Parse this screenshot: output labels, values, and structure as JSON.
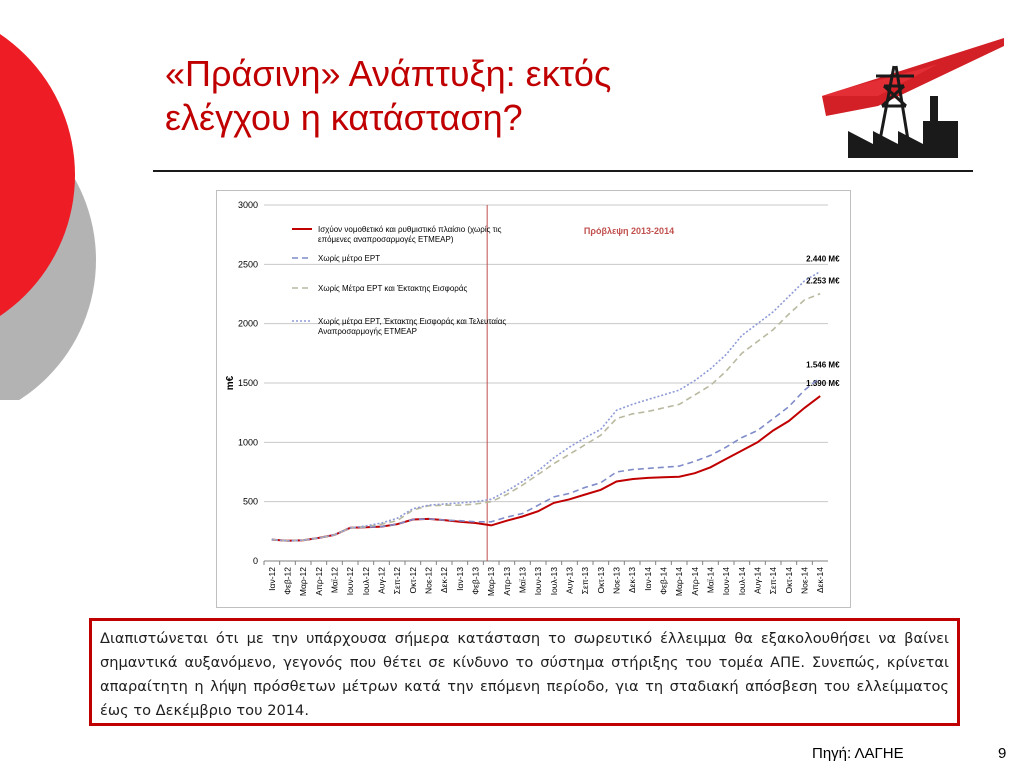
{
  "slide": {
    "title_line1": "«Πράσινη» Ανάπτυξη: εκτός",
    "title_line2": "ελέγχου η κατάσταση?",
    "note_text": "Διαπιστώνεται ότι με την υπάρχουσα σήμερα κατάσταση το σωρευτικό έλλειμμα θα εξακολουθήσει να βαίνει σημαντικά αυξανόμενο, γεγονός που θέτει σε κίνδυνο το σύστημα στήριξης του τομέα ΑΠΕ. Συνεπώς, κρίνεται απαραίτητη η λήψη πρόσθετων μέτρων κατά την επόμενη περίοδο, για τη σταδιακή απόσβεση του ελλείμματος έως το Δεκέμβριο του 2014.",
    "source": "Πηγή: ΛΑΓΗΕ",
    "page_number": "9",
    "colors": {
      "accent": "#c00000",
      "circle_red": "#ee1c25",
      "circle_grey": "#b3b3b3"
    },
    "logo_icon": "pylon-factory-icon"
  },
  "chart_data": {
    "type": "line",
    "ylabel": "m€",
    "ylim": [
      0,
      3000
    ],
    "yticks": [
      "0",
      "500",
      "1000",
      "1500",
      "2000",
      "2500",
      "3000"
    ],
    "grid": true,
    "legend_position": "top-left",
    "categories": [
      "Ιαν-12",
      "Φεβ-12",
      "Μαρ-12",
      "Απρ-12",
      "Μαϊ-12",
      "Ιουν-12",
      "Ιουλ-12",
      "Αυγ-12",
      "Σεπ-12",
      "Οκτ-12",
      "Νοε-12",
      "Δεκ-12",
      "Ιαν-13",
      "Φεβ-13",
      "Μαρ-13",
      "Απρ-13",
      "Μαϊ-13",
      "Ιουν-13",
      "Ιουλ-13",
      "Αυγ-13",
      "Σεπ-13",
      "Οκτ-13",
      "Νοε-13",
      "Δεκ-13",
      "Ιαν-14",
      "Φεβ-14",
      "Μαρ-14",
      "Απρ-14",
      "Μαϊ-14",
      "Ιουν-14",
      "Ιουλ-14",
      "Αυγ-14",
      "Σεπ-14",
      "Οκτ-14",
      "Νοε-14",
      "Δεκ-14"
    ],
    "forecast_label": "Πρόβλεψη 2013-2014",
    "forecast_start": "Μαρ-13",
    "series": [
      {
        "name": "Ισχύον νομοθετικό και ρυθμιστικό πλαίσιο (χωρίς τις επόμενες αναπροσαρμογές ΕΤΜΕΑΡ)",
        "color": "#c00000",
        "dash": "solid",
        "end_label": "1.390 M€",
        "values": [
          180,
          170,
          175,
          195,
          220,
          280,
          285,
          290,
          310,
          350,
          355,
          345,
          330,
          320,
          300,
          340,
          375,
          420,
          490,
          520,
          560,
          600,
          670,
          690,
          700,
          705,
          710,
          740,
          790,
          860,
          930,
          1000,
          1100,
          1180,
          1290,
          1390
        ]
      },
      {
        "name": "Χωρίς μέτρο ΕΡΤ",
        "color": "#7f8cc9",
        "dash": "dashed",
        "end_label": "1.546 M€",
        "values": [
          180,
          170,
          175,
          195,
          220,
          280,
          285,
          290,
          310,
          350,
          355,
          345,
          340,
          330,
          330,
          370,
          400,
          470,
          540,
          570,
          620,
          660,
          750,
          770,
          780,
          790,
          800,
          840,
          890,
          960,
          1040,
          1100,
          1200,
          1300,
          1440,
          1546
        ]
      },
      {
        "name": "Χωρίς Μέτρα ΕΡΤ και Έκτακτης Εισφοράς",
        "color": "#b9b9a0",
        "dash": "dashed",
        "end_label": "2.253 M€",
        "values": [
          180,
          170,
          175,
          195,
          220,
          280,
          290,
          310,
          340,
          430,
          465,
          470,
          470,
          480,
          500,
          560,
          640,
          730,
          820,
          900,
          980,
          1060,
          1200,
          1240,
          1260,
          1290,
          1320,
          1400,
          1480,
          1600,
          1750,
          1850,
          1950,
          2080,
          2200,
          2253
        ]
      },
      {
        "name": "Χωρίς μέτρα ΕΡΤ, Έκτακτης Εισφοράς και Τελευταίας Αναπροσαρμογής ΕΤΜΕΑΡ",
        "color": "#8e9ad6",
        "dash": "dotted",
        "end_label": "2.440 M€",
        "values": [
          180,
          170,
          175,
          195,
          220,
          280,
          295,
          320,
          360,
          440,
          470,
          480,
          490,
          500,
          520,
          590,
          670,
          760,
          870,
          960,
          1040,
          1110,
          1270,
          1320,
          1360,
          1400,
          1440,
          1520,
          1620,
          1740,
          1900,
          2000,
          2100,
          2230,
          2360,
          2440
        ]
      }
    ]
  }
}
